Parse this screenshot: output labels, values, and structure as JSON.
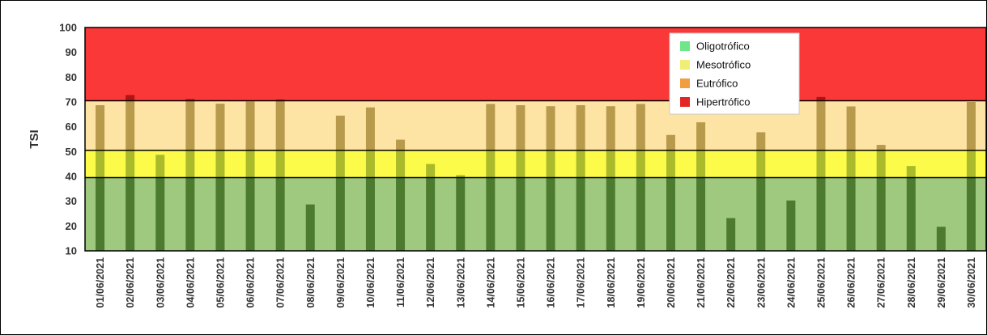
{
  "chart_data": {
    "type": "bar",
    "title": "",
    "xlabel": "",
    "ylabel": "TSI",
    "ylim": [
      10,
      100
    ],
    "yticks": [
      10,
      20,
      30,
      40,
      50,
      60,
      70,
      80,
      90,
      100
    ],
    "grid": false,
    "legend_placement": "top-right",
    "categories": [
      "01/06/2021",
      "02/06/2021",
      "03/06/2021",
      "04/06/2021",
      "05/06/2021",
      "06/06/2021",
      "07/06/2021",
      "08/06/2021",
      "09/06/2021",
      "10/06/2021",
      "11/06/2021",
      "12/06/2021",
      "13/06/2021",
      "14/06/2021",
      "15/06/2021",
      "16/06/2021",
      "17/06/2021",
      "18/06/2021",
      "19/06/2021",
      "20/06/2021",
      "21/06/2021",
      "22/06/2021",
      "23/06/2021",
      "24/06/2021",
      "25/06/2021",
      "26/06/2021",
      "27/06/2021",
      "28/06/2021",
      "29/06/2021",
      "30/06/2021"
    ],
    "values": [
      68.7,
      72.8,
      48.7,
      71.2,
      69.3,
      70.2,
      71.0,
      28.7,
      64.5,
      67.8,
      54.8,
      45.0,
      40.5,
      69.2,
      68.7,
      68.3,
      68.7,
      68.3,
      69.2,
      56.7,
      61.8,
      23.2,
      57.8,
      30.3,
      72.0,
      68.2,
      52.7,
      44.2,
      19.7,
      70.0
    ],
    "bands": [
      {
        "name": "Oligotrófico",
        "from": 10,
        "to": 39.5,
        "color": "#9fc97e"
      },
      {
        "name": "Mesotrófico",
        "from": 39.5,
        "to": 50.5,
        "color": "#fdfb4a"
      },
      {
        "name": "Eutrófico",
        "from": 50.5,
        "to": 70.5,
        "color": "#fde3a4"
      },
      {
        "name": "Hipertrófico",
        "from": 70.5,
        "to": 100,
        "color": "#fa3838"
      }
    ],
    "band_boundaries": [
      39.5,
      50.5,
      70.5
    ],
    "bar_colors": {
      "Oligotrófico": "#4c7a2e",
      "Mesotrófico": "#aaba2a",
      "Eutrófico": "#b89a4c",
      "Hipertrófico": "#b01515"
    },
    "legend": [
      {
        "label": "Oligotrófico",
        "color": "#6ee68a"
      },
      {
        "label": "Mesotrófico",
        "color": "#f1ee78"
      },
      {
        "label": "Eutrófico",
        "color": "#f19c3e"
      },
      {
        "label": "Hipertrófico",
        "color": "#e52424"
      }
    ]
  }
}
